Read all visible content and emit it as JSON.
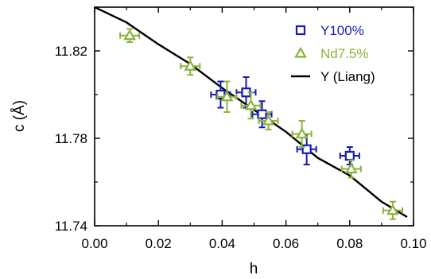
{
  "chart_data": {
    "type": "scatter",
    "xlabel": "h",
    "ylabel": "c (Å)",
    "xlim": [
      0.0,
      0.1
    ],
    "ylim": [
      11.74,
      11.84
    ],
    "x_ticks": [
      "0.00",
      "0.02",
      "0.04",
      "0.06",
      "0.08",
      "0.10"
    ],
    "y_ticks": [
      "11.74",
      "11.78",
      "11.82"
    ],
    "legend_position": "top-right",
    "series": [
      {
        "name": "Y100%",
        "marker": "square",
        "color": "#1a1ab4",
        "points": [
          {
            "x": 0.0395,
            "y": 11.8,
            "xerr": 0.003,
            "yerr": 0.006
          },
          {
            "x": 0.0475,
            "y": 11.801,
            "xerr": 0.003,
            "yerr": 0.007
          },
          {
            "x": 0.0525,
            "y": 11.791,
            "xerr": 0.003,
            "yerr": 0.006
          },
          {
            "x": 0.0665,
            "y": 11.775,
            "xerr": 0.003,
            "yerr": 0.007
          },
          {
            "x": 0.08,
            "y": 11.772,
            "xerr": 0.003,
            "yerr": 0.004
          }
        ]
      },
      {
        "name": "Nd7.5%",
        "marker": "triangle",
        "color": "#8db33a",
        "points": [
          {
            "x": 0.011,
            "y": 11.827,
            "xerr": 0.003,
            "yerr": 0.003
          },
          {
            "x": 0.03,
            "y": 11.813,
            "xerr": 0.003,
            "yerr": 0.004
          },
          {
            "x": 0.0415,
            "y": 11.799,
            "xerr": 0.003,
            "yerr": 0.007
          },
          {
            "x": 0.049,
            "y": 11.795,
            "xerr": 0.003,
            "yerr": 0.006
          },
          {
            "x": 0.0545,
            "y": 11.788,
            "xerr": 0.003,
            "yerr": 0.004
          },
          {
            "x": 0.065,
            "y": 11.782,
            "xerr": 0.003,
            "yerr": 0.006
          },
          {
            "x": 0.0805,
            "y": 11.766,
            "xerr": 0.003,
            "yerr": 0.004
          },
          {
            "x": 0.0935,
            "y": 11.747,
            "xerr": 0.003,
            "yerr": 0.004
          }
        ]
      },
      {
        "name": "Y (Liang)",
        "type": "line",
        "color": "#000000",
        "points": [
          {
            "x": 0.0,
            "y": 11.84
          },
          {
            "x": 0.01,
            "y": 11.833
          },
          {
            "x": 0.02,
            "y": 11.823
          },
          {
            "x": 0.03,
            "y": 11.814
          },
          {
            "x": 0.04,
            "y": 11.803
          },
          {
            "x": 0.05,
            "y": 11.793
          },
          {
            "x": 0.06,
            "y": 11.783
          },
          {
            "x": 0.07,
            "y": 11.771
          },
          {
            "x": 0.08,
            "y": 11.763
          },
          {
            "x": 0.09,
            "y": 11.751
          },
          {
            "x": 0.098,
            "y": 11.744
          }
        ]
      }
    ]
  }
}
